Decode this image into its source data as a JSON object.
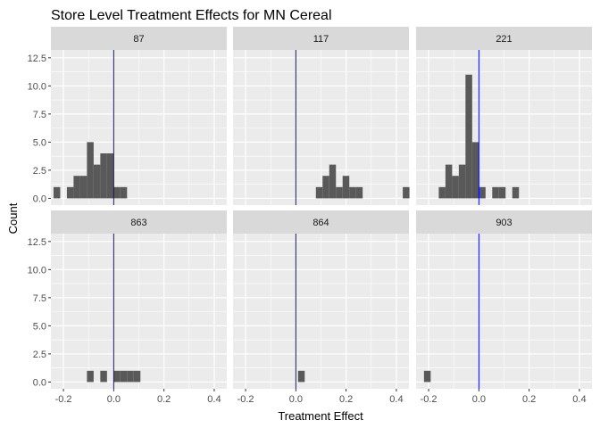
{
  "chart_data": {
    "type": "bar",
    "title": "Store Level Treatment Effects for MN Cereal",
    "xlabel": "Treatment Effect",
    "ylabel": "Count",
    "xlim": [
      -0.25,
      0.45
    ],
    "ylim": [
      -0.6,
      13.2
    ],
    "xticks": [
      "-0.2",
      "0.0",
      "0.2",
      "0.4"
    ],
    "xtick_values": [
      -0.2,
      0.0,
      0.2,
      0.4
    ],
    "yticks": [
      "0.0",
      "2.5",
      "5.0",
      "7.5",
      "10.0",
      "12.5"
    ],
    "ytick_values": [
      0,
      2.5,
      5,
      7.5,
      10,
      12.5
    ],
    "bin_width": 0.0266,
    "reference_line_x": 0,
    "reference_line_color": "#0000ff",
    "bar_color": "#595959",
    "panel_background": "#ebebeb",
    "strip_background": "#d9d9d9",
    "grid": true,
    "panels": [
      {
        "label": "87",
        "bins": [
          {
            "x": -0.2262,
            "count": 1
          },
          {
            "x": -0.173,
            "count": 1
          },
          {
            "x": -0.1464,
            "count": 2
          },
          {
            "x": -0.1198,
            "count": 2
          },
          {
            "x": -0.0932,
            "count": 5
          },
          {
            "x": -0.0666,
            "count": 3
          },
          {
            "x": -0.04,
            "count": 4
          },
          {
            "x": -0.0134,
            "count": 4
          },
          {
            "x": 0.0132,
            "count": 1
          },
          {
            "x": 0.0398,
            "count": 1
          }
        ]
      },
      {
        "label": "117",
        "bins": [
          {
            "x": 0.093,
            "count": 1
          },
          {
            "x": 0.1196,
            "count": 2
          },
          {
            "x": 0.1462,
            "count": 3
          },
          {
            "x": 0.1728,
            "count": 1
          },
          {
            "x": 0.1994,
            "count": 2
          },
          {
            "x": 0.226,
            "count": 1
          },
          {
            "x": 0.2526,
            "count": 1
          },
          {
            "x": 0.4388,
            "count": 1
          }
        ]
      },
      {
        "label": "221",
        "bins": [
          {
            "x": -0.1464,
            "count": 1
          },
          {
            "x": -0.1198,
            "count": 3
          },
          {
            "x": -0.0932,
            "count": 2
          },
          {
            "x": -0.0666,
            "count": 3
          },
          {
            "x": -0.04,
            "count": 11
          },
          {
            "x": -0.0134,
            "count": 5
          },
          {
            "x": 0.0132,
            "count": 1
          },
          {
            "x": 0.0664,
            "count": 1
          },
          {
            "x": 0.093,
            "count": 1
          },
          {
            "x": 0.1462,
            "count": 1
          }
        ]
      },
      {
        "label": "863",
        "bins": [
          {
            "x": -0.0932,
            "count": 1
          },
          {
            "x": -0.04,
            "count": 1
          },
          {
            "x": 0.0132,
            "count": 1
          },
          {
            "x": 0.0398,
            "count": 1
          },
          {
            "x": 0.0664,
            "count": 1
          },
          {
            "x": 0.093,
            "count": 1
          }
        ]
      },
      {
        "label": "864",
        "bins": [
          {
            "x": 0.022,
            "count": 1
          }
        ]
      },
      {
        "label": "903",
        "bins": [
          {
            "x": -0.2052,
            "count": 1
          }
        ]
      }
    ]
  }
}
